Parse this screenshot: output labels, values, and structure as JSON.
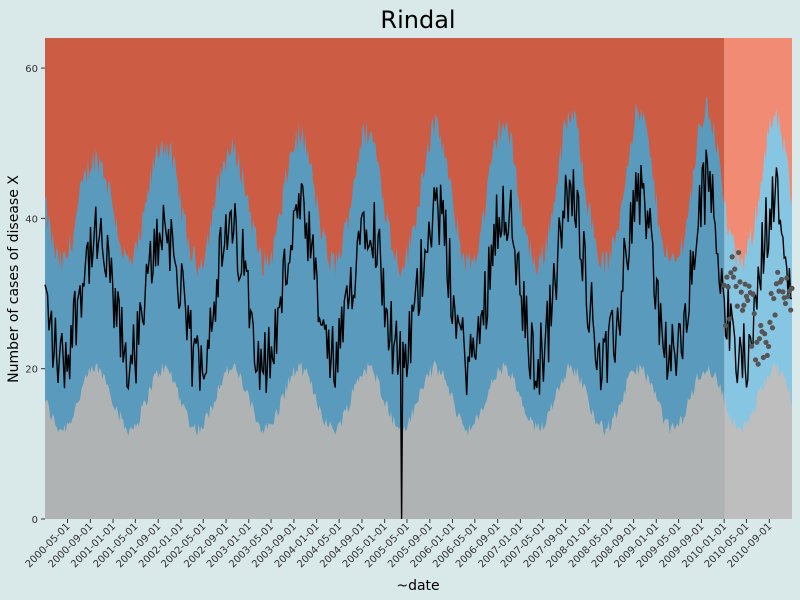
{
  "chart_data": {
    "type": "area",
    "title": "Rindal",
    "xlabel": "~date",
    "ylabel": "Number of cases of disease X",
    "x_range": [
      "2000-01-01",
      "2011-01-01"
    ],
    "ylim": [
      0,
      64
    ],
    "y_ticks": [
      0,
      20,
      40,
      60
    ],
    "x_ticks": [
      "2000-05-01",
      "2000-09-01",
      "2001-01-01",
      "2001-05-01",
      "2001-09-01",
      "2002-01-01",
      "2002-05-01",
      "2002-09-01",
      "2003-01-01",
      "2003-05-01",
      "2003-09-01",
      "2004-01-01",
      "2004-05-01",
      "2004-09-01",
      "2005-01-01",
      "2005-05-01",
      "2005-09-01",
      "2006-01-01",
      "2006-05-01",
      "2006-09-01",
      "2007-01-01",
      "2007-05-01",
      "2007-09-01",
      "2008-01-01",
      "2008-05-01",
      "2008-09-01",
      "2009-01-01",
      "2009-05-01",
      "2009-09-01",
      "2010-01-01",
      "2010-05-01",
      "2010-09-01"
    ],
    "forecast_start": "2010-01-01",
    "seasonality": {
      "peak_month": 10,
      "baseline_lower": 16,
      "baseline_lower_amplitude": 4,
      "baseline_upper": 42,
      "baseline_upper_amplitude": 8,
      "observed_mean": 30,
      "observed_amplitude": 9,
      "observed_noise": 5,
      "forecast_mean": 28,
      "forecast_spread": 4
    },
    "annual_peaks": [
      {
        "year": 2000,
        "value": 44
      },
      {
        "year": 2001,
        "value": 48
      },
      {
        "year": 2002,
        "value": 46
      },
      {
        "year": 2003,
        "value": 50
      },
      {
        "year": 2004,
        "value": 51
      },
      {
        "year": 2005,
        "value": 52
      },
      {
        "year": 2006,
        "value": 53
      },
      {
        "year": 2007,
        "value": 55
      },
      {
        "year": 2008,
        "value": 56
      },
      {
        "year": 2009,
        "value": 57
      },
      {
        "year": 2010,
        "value": 54
      }
    ],
    "outlier": {
      "date": "2005-04-01",
      "value": 0
    },
    "colors": {
      "background": "#d9e8e8",
      "high": "#cd5c45",
      "normal": "#5a9bbd",
      "low": "#b0b3b3",
      "forecast_high": "#f28b73",
      "forecast_normal": "#87c6e3",
      "forecast_low": "#bebebe",
      "observed": "#000000",
      "forecast_points": "#555555"
    }
  }
}
